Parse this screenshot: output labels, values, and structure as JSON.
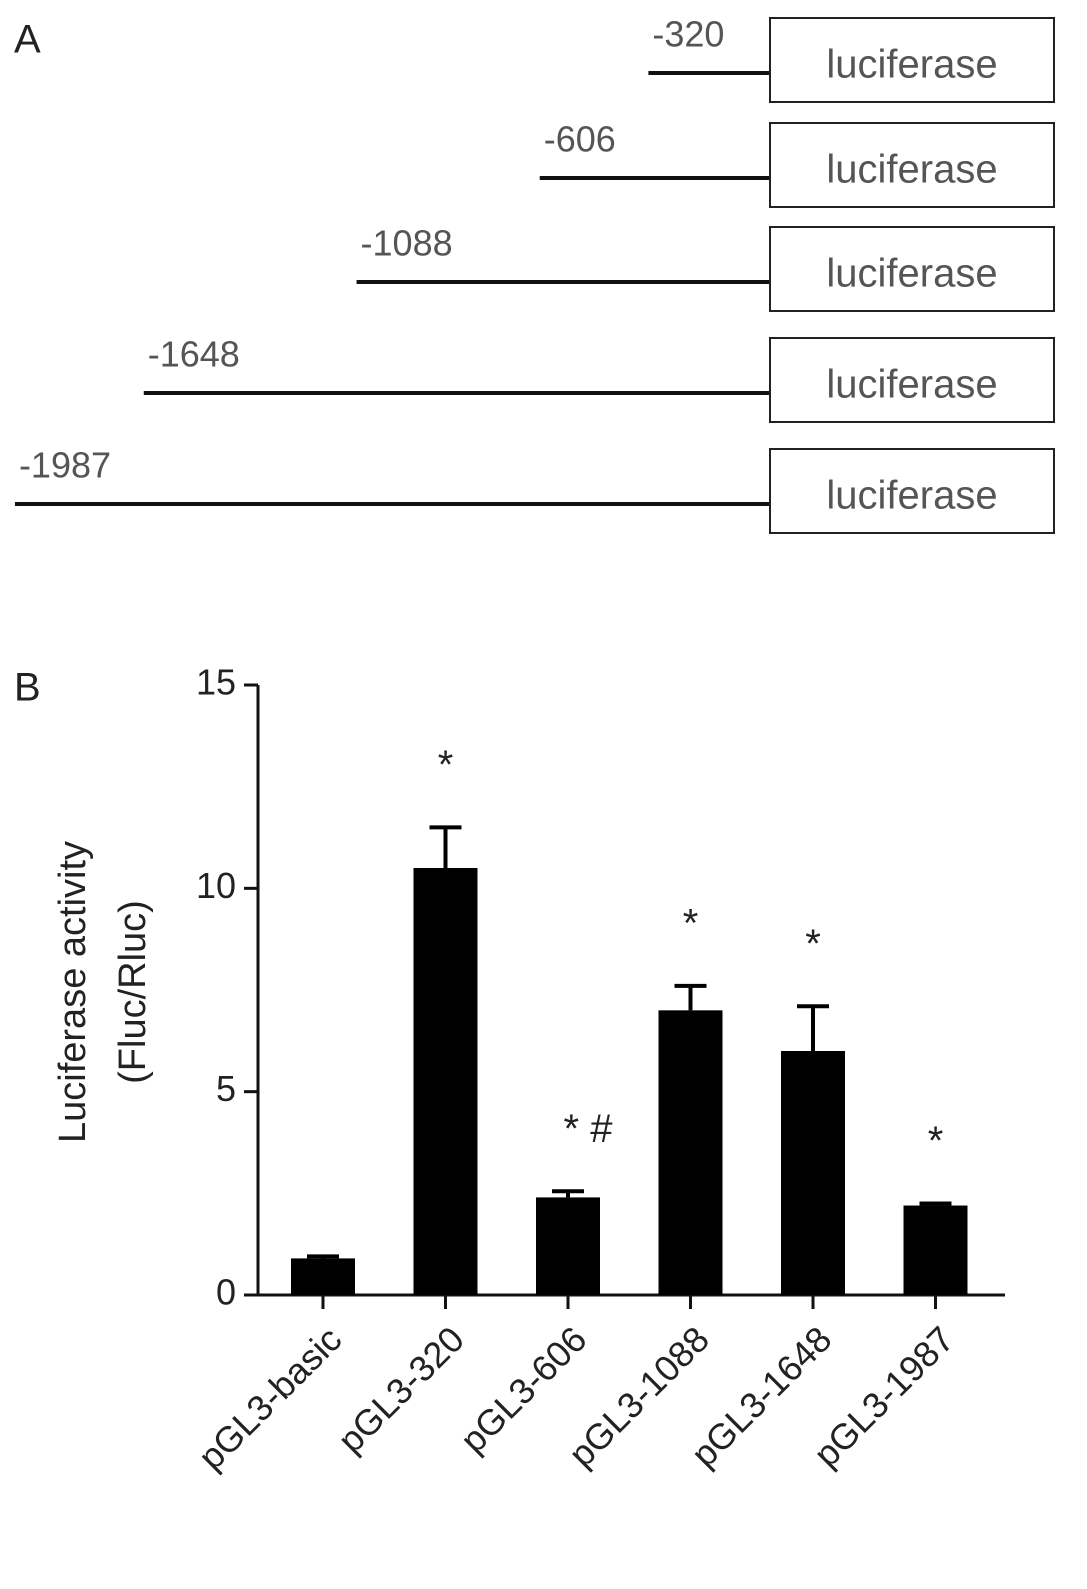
{
  "panel_a": {
    "label": "A",
    "constructs": [
      {
        "position": -320,
        "box": "luciferase"
      },
      {
        "position": -606,
        "box": "luciferase"
      },
      {
        "position": -1088,
        "box": "luciferase"
      },
      {
        "position": -1648,
        "box": "luciferase"
      },
      {
        "position": -1987,
        "box": "luciferase"
      }
    ]
  },
  "chart_data": {
    "type": "bar",
    "panel_label": "B",
    "ylabel": [
      "Luciferase activity",
      "(Fluc/Rluc)"
    ],
    "categories": [
      "pGL3-basic",
      "pGL3-320",
      "pGL3-606",
      "pGL3-1088",
      "pGL3-1648",
      "pGL3-1987"
    ],
    "values": [
      0.9,
      10.5,
      2.4,
      7.0,
      6.0,
      2.2
    ],
    "errors": [
      0.05,
      1.0,
      0.15,
      0.6,
      1.1,
      0.05
    ],
    "annotations": [
      null,
      "*",
      "* #",
      "*",
      "*",
      "*"
    ],
    "color": "#000000",
    "ylim": [
      0,
      15
    ],
    "yticks": [
      0,
      5,
      10,
      15
    ]
  }
}
